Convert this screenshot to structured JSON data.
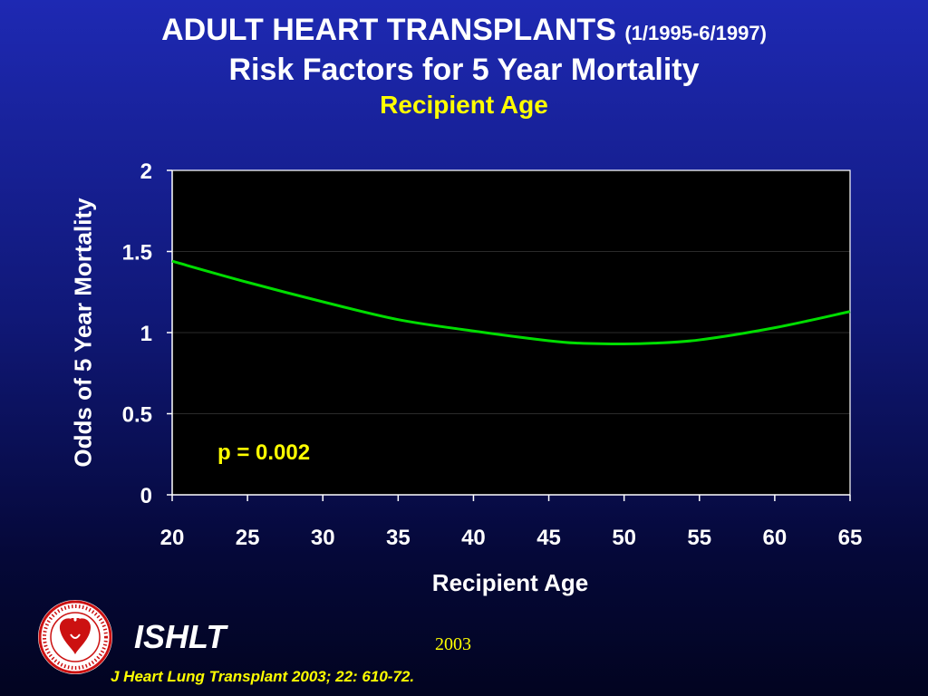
{
  "slide": {
    "title": "ADULT HEART TRANSPLANTS",
    "title_dates": "(1/1995-6/1997)",
    "subtitle": "Risk Factors for 5 Year Mortality",
    "subsubtitle": "Recipient Age",
    "annotation": "p = 0.002",
    "org": "ISHLT",
    "year": "2003",
    "citation": "J Heart Lung Transplant 2003; 22: 610-72.",
    "colors": {
      "title": "#ffffff",
      "accent": "#ffff00",
      "line": "#00dd00",
      "plot_background": "#000000"
    }
  },
  "chart_data": {
    "type": "line",
    "title": "Recipient Age",
    "xlabel": "Recipient Age",
    "ylabel": "Odds of 5 Year Mortality",
    "xlim": [
      20,
      65
    ],
    "ylim": [
      0,
      2
    ],
    "x_ticks": [
      "20",
      "25",
      "30",
      "35",
      "40",
      "45",
      "50",
      "55",
      "60",
      "65"
    ],
    "y_ticks": [
      "0",
      "0.5",
      "1",
      "1.5",
      "2"
    ],
    "grid": true,
    "series": [
      {
        "x": [
          20,
          25,
          30,
          35,
          40,
          45,
          47,
          50,
          52,
          55,
          60,
          65
        ],
        "y": [
          1.44,
          1.31,
          1.19,
          1.08,
          1.01,
          0.95,
          0.935,
          0.93,
          0.935,
          0.955,
          1.03,
          1.13
        ]
      }
    ]
  }
}
